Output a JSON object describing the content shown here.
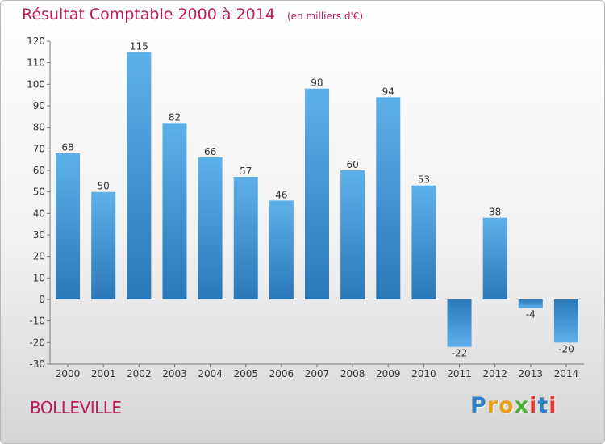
{
  "chart_data": {
    "type": "bar",
    "title": "Résultat Comptable 2000 à 2014",
    "subtitle": "(en milliers d'€)",
    "categories": [
      "2000",
      "2001",
      "2002",
      "2003",
      "2004",
      "2005",
      "2006",
      "2007",
      "2008",
      "2009",
      "2010",
      "2011",
      "2012",
      "2013",
      "2014"
    ],
    "values": [
      68,
      50,
      115,
      82,
      66,
      57,
      46,
      98,
      60,
      94,
      53,
      -22,
      38,
      -4,
      -20
    ],
    "ylim": [
      -30,
      120
    ],
    "yticks": [
      -30,
      -20,
      -10,
      0,
      10,
      20,
      30,
      40,
      50,
      60,
      70,
      80,
      90,
      100,
      110,
      120
    ],
    "grid": false,
    "bar_color_top": "#5eb0ea",
    "bar_color_bottom": "#2a78b8"
  },
  "commune": "BOLLEVILLE",
  "logo": {
    "letters": [
      "P",
      "r",
      "o",
      "x",
      "i",
      "t",
      "i"
    ],
    "colors": [
      "#2f7fc7",
      "#e8a01a",
      "#e8a01a",
      "#4caf3c",
      "#e63b2e",
      "#2f7fc7",
      "#e63b2e"
    ]
  }
}
